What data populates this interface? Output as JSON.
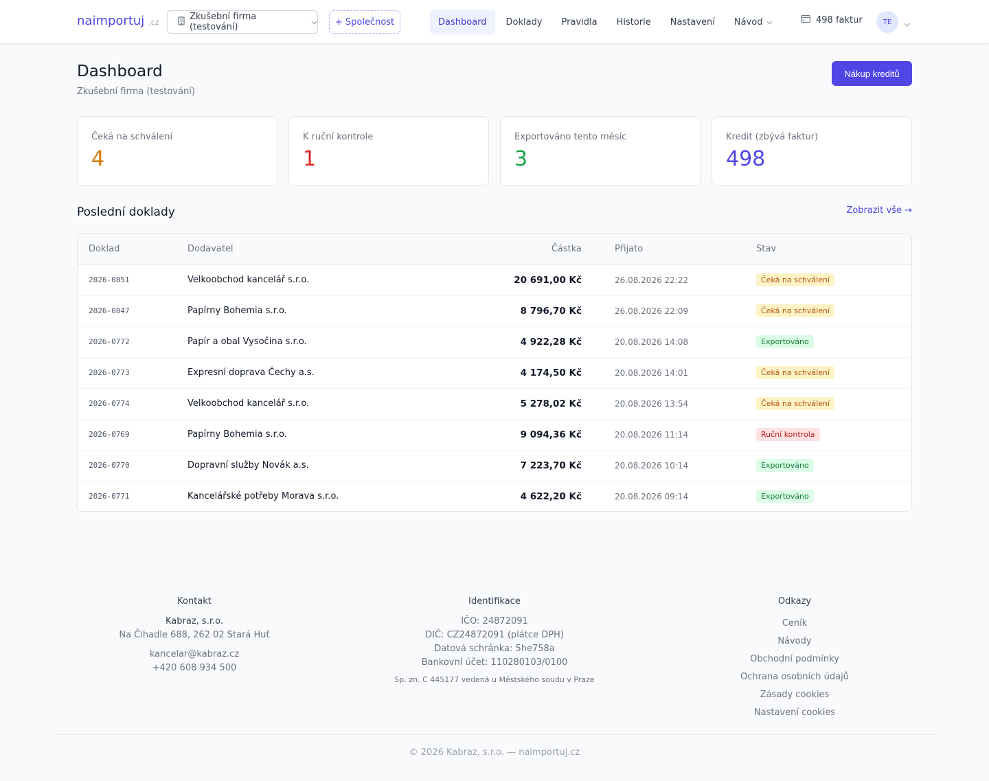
{
  "header": {
    "logo": "naimportuj",
    "logo_tld": ".cz",
    "company": "Zkušební firma (testování)",
    "add_company": "+ Společnost",
    "nav": [
      {
        "label": "Dashboard",
        "active": true
      },
      {
        "label": "Doklady"
      },
      {
        "label": "Pravidla"
      },
      {
        "label": "Historie"
      },
      {
        "label": "Nastavení"
      },
      {
        "label": "Návod"
      }
    ],
    "credits": "498 faktur",
    "avatar": "TE"
  },
  "page": {
    "title": "Dashboard",
    "subtitle": "Zkušební firma (testování)",
    "buy_button": "Nákup kreditů"
  },
  "stats": [
    {
      "label": "Čeká na schválení",
      "value": "4",
      "color": "#d97706"
    },
    {
      "label": "K ruční kontrole",
      "value": "1",
      "color": "#dc2626"
    },
    {
      "label": "Exportováno tento měsíc",
      "value": "3",
      "color": "#16a34a"
    },
    {
      "label": "Kredit (zbývá faktur)",
      "value": "498",
      "color": "#4f46e5"
    }
  ],
  "recent": {
    "title": "Poslední doklady",
    "view_all": "Zobrazit vše →",
    "columns": {
      "doc": "Doklad",
      "supplier": "Dodavatel",
      "amount": "Částka",
      "received": "Přijato",
      "status": "Stav"
    },
    "rows": [
      {
        "doc": "2026-0851",
        "supplier": "Velkoobchod kancelář s.r.o.",
        "amount": "20 691,00 Kč",
        "received": "26.08.2026 22:22",
        "status": "Čeká na schválení",
        "status_kind": "waiting"
      },
      {
        "doc": "2026-0847",
        "supplier": "Papírny Bohemia s.r.o.",
        "amount": "8 796,70 Kč",
        "received": "26.08.2026 22:09",
        "status": "Čeká na schválení",
        "status_kind": "waiting"
      },
      {
        "doc": "2026-0772",
        "supplier": "Papír a obal Vysočina s.r.o.",
        "amount": "4 922,28 Kč",
        "received": "20.08.2026 14:08",
        "status": "Exportováno",
        "status_kind": "exported"
      },
      {
        "doc": "2026-0773",
        "supplier": "Expresní doprava Čechy a.s.",
        "amount": "4 174,50 Kč",
        "received": "20.08.2026 14:01",
        "status": "Čeká na schválení",
        "status_kind": "waiting"
      },
      {
        "doc": "2026-0774",
        "supplier": "Velkoobchod kancelář s.r.o.",
        "amount": "5 278,02 Kč",
        "received": "20.08.2026 13:54",
        "status": "Čeká na schválení",
        "status_kind": "waiting"
      },
      {
        "doc": "2026-0769",
        "supplier": "Papírny Bohemia s.r.o.",
        "amount": "9 094,36 Kč",
        "received": "20.08.2026 11:14",
        "status": "Ruční kontrola",
        "status_kind": "manual"
      },
      {
        "doc": "2026-0770",
        "supplier": "Dopravní služby Novák a.s.",
        "amount": "7 223,70 Kč",
        "received": "20.08.2026 10:14",
        "status": "Exportováno",
        "status_kind": "exported"
      },
      {
        "doc": "2026-0771",
        "supplier": "Kancelářské potřeby Morava s.r.o.",
        "amount": "4 622,20 Kč",
        "received": "20.08.2026 09:14",
        "status": "Exportováno",
        "status_kind": "exported"
      }
    ]
  },
  "footer": {
    "contact": {
      "title": "Kontakt",
      "company": "Kabraz, s.r.o.",
      "address": "Na Čihadle 688, 262 02 Stará Huť",
      "email": "kancelar@kabraz.cz",
      "phone": "+420 608 934 500"
    },
    "ident": {
      "title": "Identifikace",
      "ico": "IČO: 24872091",
      "dic": "DIČ: CZ24872091 (plátce DPH)",
      "databox": "Datová schránka: 5he758a",
      "bank": "Bankovní účet: 110280103/0100",
      "registry": "Sp. zn. C 445177 vedená u Městského soudu v Praze"
    },
    "links": {
      "title": "Odkazy",
      "items": [
        "Ceník",
        "Návody",
        "Obchodní podmínky",
        "Ochrana osobních údajů",
        "Zásady cookies",
        "Nastavení cookies"
      ]
    },
    "copyright": "© 2026 Kabraz, s.r.o. — naimportuj.cz"
  }
}
